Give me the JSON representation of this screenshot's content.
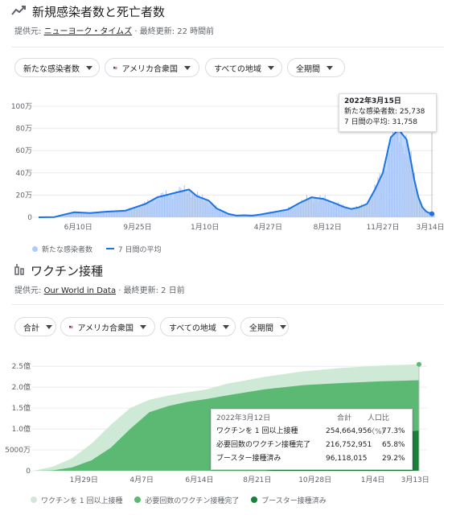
{
  "cases_section": {
    "title": "新規感染者数と死亡者数",
    "source_prefix": "提供元:",
    "source_name": "ニューヨーク・タイムズ",
    "updated": "· 最終更新: 22 時間前",
    "chips": [
      "新たな感染者数",
      "アメリカ合衆国",
      "すべての地域",
      "全期間"
    ],
    "tooltip": {
      "date": "2022年3月15日",
      "row1_label": "新たな感染者数:",
      "row1_value": "25,738",
      "row2_label": "7 日間の平均:",
      "row2_value": "31,758"
    },
    "legend": [
      "新たな感染者数",
      "7 日間の平均"
    ]
  },
  "vaccine_section": {
    "title": "ワクチン接種",
    "source_prefix": "提供元:",
    "source_name": "Our World in Data",
    "updated": "· 最終更新: 2 日前",
    "chips": [
      "合計",
      "アメリカ合衆国",
      "すべての地域",
      "全期間"
    ],
    "tooltip": {
      "date": "2022年3月12日",
      "col_total": "合計",
      "col_pct": "人口比（%）",
      "rows": [
        {
          "label": "ワクチンを 1 回以上接種",
          "total": "254,664,956",
          "pct": "77.3%"
        },
        {
          "label": "必要回数のワクチン接種完了",
          "total": "216,752,951",
          "pct": "65.8%"
        },
        {
          "label": "ブースター接種済み",
          "total": "96,118,015",
          "pct": "29.2%"
        }
      ]
    },
    "legend": [
      "ワクチンを 1 回以上接種",
      "必要回数のワクチン接種完了",
      "ブースター接種済み"
    ]
  },
  "colors": {
    "cases_bar": "#aecbfa",
    "cases_line": "#1a73e8",
    "vax_one": "#ceead6",
    "vax_full": "#5bb974",
    "vax_boost": "#188038"
  },
  "chart_data": [
    {
      "type": "area",
      "ylim": [
        0,
        1000000
      ],
      "yticks": [
        {
          "v": 0,
          "label": "0"
        },
        {
          "v": 200000,
          "label": "20万"
        },
        {
          "v": 400000,
          "label": "40万"
        },
        {
          "v": 600000,
          "label": "60万"
        },
        {
          "v": 800000,
          "label": "80万"
        },
        {
          "v": 1000000,
          "label": "100万"
        }
      ],
      "xticks": [
        "6月10日",
        "9月25日",
        "1月10日",
        "4月27日",
        "8月12日",
        "11月27日",
        "3月14日"
      ],
      "series": [
        {
          "name": "7 日間の平均",
          "x": [
            0.0,
            0.04,
            0.06,
            0.09,
            0.13,
            0.17,
            0.22,
            0.27,
            0.3,
            0.35,
            0.38,
            0.4,
            0.43,
            0.45,
            0.48,
            0.5,
            0.52,
            0.54,
            0.56,
            0.6,
            0.63,
            0.66,
            0.69,
            0.72,
            0.75,
            0.77,
            0.79,
            0.81,
            0.83,
            0.85,
            0.87,
            0.89,
            0.91,
            0.93,
            0.94,
            0.95,
            0.96,
            0.97,
            0.98,
            0.99,
            1.0
          ],
          "values": [
            0,
            2000,
            20000,
            45000,
            38000,
            50000,
            60000,
            120000,
            180000,
            225000,
            250000,
            190000,
            150000,
            80000,
            30000,
            15000,
            18000,
            15000,
            25000,
            50000,
            70000,
            130000,
            180000,
            165000,
            125000,
            95000,
            75000,
            90000,
            120000,
            250000,
            400000,
            720000,
            790000,
            700000,
            520000,
            330000,
            180000,
            90000,
            50000,
            35000,
            31758
          ]
        }
      ]
    },
    {
      "type": "area",
      "ylim": [
        0,
        250000000
      ],
      "yticks": [
        {
          "v": 0,
          "label": "0"
        },
        {
          "v": 50000000,
          "label": "5000万"
        },
        {
          "v": 100000000,
          "label": "1.0億"
        },
        {
          "v": 150000000,
          "label": "1.5億"
        },
        {
          "v": 200000000,
          "label": "2.0億"
        },
        {
          "v": 250000000,
          "label": "2.5億"
        }
      ],
      "xticks": [
        "1月29日",
        "4月7日",
        "6月14日",
        "8月21日",
        "10月28日",
        "1月4日",
        "3月13日"
      ],
      "series": [
        {
          "name": "ワクチンを 1 回以上接種",
          "x": [
            0.0,
            0.05,
            0.1,
            0.15,
            0.2,
            0.25,
            0.3,
            0.35,
            0.4,
            0.45,
            0.5,
            0.6,
            0.7,
            0.8,
            0.9,
            1.0
          ],
          "values": [
            0,
            10000000,
            30000000,
            65000000,
            110000000,
            150000000,
            170000000,
            180000000,
            188000000,
            195000000,
            208000000,
            225000000,
            238000000,
            246000000,
            252000000,
            254664956
          ]
        },
        {
          "name": "必要回数のワクチン接種完了",
          "x": [
            0.0,
            0.05,
            0.1,
            0.15,
            0.2,
            0.25,
            0.3,
            0.35,
            0.4,
            0.45,
            0.5,
            0.6,
            0.7,
            0.8,
            0.9,
            1.0
          ],
          "values": [
            0,
            1000000,
            8000000,
            25000000,
            55000000,
            100000000,
            140000000,
            155000000,
            165000000,
            172000000,
            180000000,
            195000000,
            205000000,
            210000000,
            214000000,
            216752951
          ]
        },
        {
          "name": "ブースター接種済み",
          "x": [
            0.0,
            0.6,
            0.65,
            0.7,
            0.75,
            0.8,
            0.85,
            0.9,
            0.95,
            1.0
          ],
          "values": [
            0,
            0,
            5000000,
            15000000,
            30000000,
            50000000,
            70000000,
            85000000,
            92000000,
            96118015
          ]
        }
      ]
    }
  ]
}
